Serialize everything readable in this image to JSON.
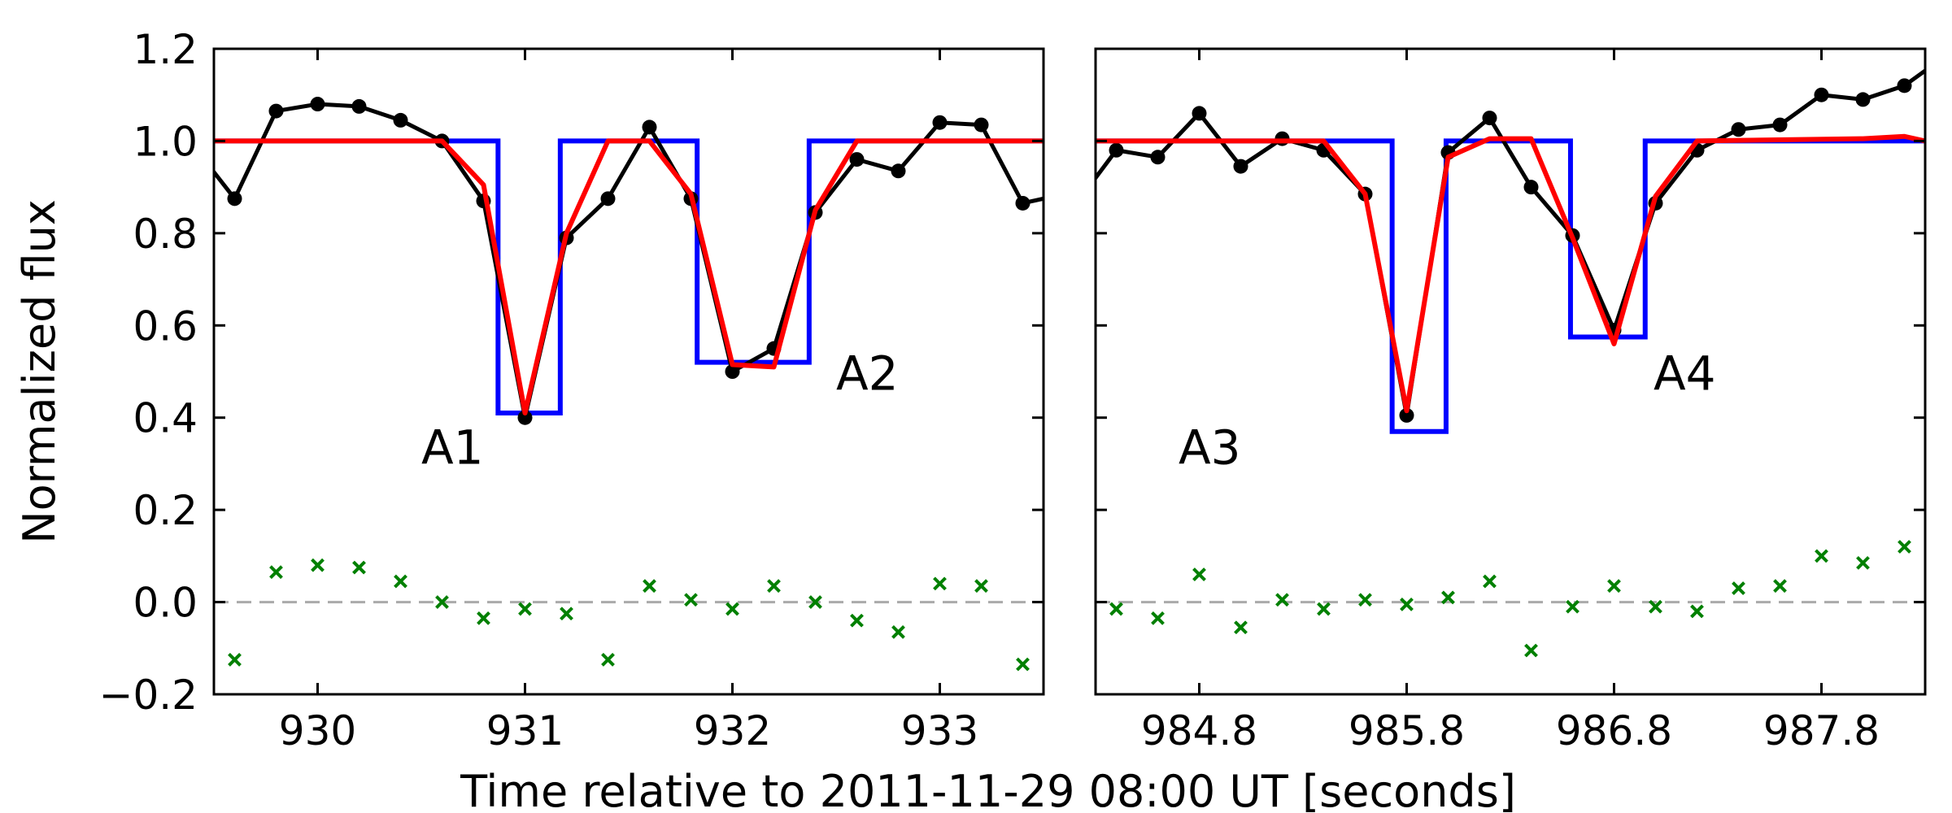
{
  "colors": {
    "data": "#000000",
    "model": "#0000ff",
    "fit": "#ff0000",
    "residual": "#008000",
    "zero_line": "#aaaaaa"
  },
  "chart_data": {
    "type": "line",
    "xlabel": "Time relative to 2011-11-29 08:00 UT [seconds]",
    "ylabel": "Normalized flux",
    "ylim": [
      -0.2,
      1.2
    ],
    "yticks": [
      -0.2,
      0.0,
      0.2,
      0.4,
      0.6,
      0.8,
      1.0,
      1.2
    ],
    "ytick_labels": [
      "−0.2",
      "0.0",
      "0.2",
      "0.4",
      "0.6",
      "0.8",
      "1.0",
      "1.2"
    ],
    "zero_line": {
      "y": 0.0,
      "style": "dashed"
    },
    "panels": [
      {
        "xlim": [
          929.5,
          933.5
        ],
        "xticks": [
          930,
          931,
          932,
          933
        ],
        "xtick_labels": [
          "930",
          "931",
          "932",
          "933"
        ],
        "annotations": [
          {
            "text": "A1",
            "x": 930.5,
            "y": 0.3
          },
          {
            "text": "A2",
            "x": 932.5,
            "y": 0.46
          }
        ],
        "data_x": [
          929.4,
          929.6,
          929.8,
          930.0,
          930.2,
          930.4,
          930.6,
          930.8,
          931.0,
          931.2,
          931.4,
          931.6,
          931.8,
          932.0,
          932.2,
          932.4,
          932.6,
          932.8,
          933.0,
          933.2,
          933.4,
          933.6
        ],
        "data_y": [
          0.99,
          0.875,
          1.065,
          1.08,
          1.075,
          1.045,
          1.0,
          0.87,
          0.4,
          0.79,
          0.875,
          1.03,
          0.875,
          0.5,
          0.55,
          0.845,
          0.96,
          0.935,
          1.04,
          1.035,
          0.865,
          0.885
        ],
        "model_x": [
          929.5,
          930.87,
          930.87,
          931.17,
          931.17,
          931.83,
          931.83,
          932.37,
          932.37,
          933.5
        ],
        "model_y": [
          1.0,
          1.0,
          0.41,
          0.41,
          1.0,
          1.0,
          0.52,
          0.52,
          1.0,
          1.0
        ],
        "fit_x": [
          929.5,
          930.4,
          930.6,
          930.8,
          931.0,
          931.2,
          931.4,
          931.6,
          931.8,
          932.0,
          932.2,
          932.4,
          932.6,
          933.5
        ],
        "fit_y": [
          1.0,
          1.0,
          1.0,
          0.905,
          0.41,
          0.8,
          1.0,
          1.0,
          0.885,
          0.515,
          0.51,
          0.85,
          1.0,
          1.0
        ],
        "residual_x": [
          929.6,
          929.8,
          930.0,
          930.2,
          930.4,
          930.6,
          930.8,
          931.0,
          931.2,
          931.4,
          931.6,
          931.8,
          932.0,
          932.2,
          932.4,
          932.6,
          932.8,
          933.0,
          933.2,
          933.4
        ],
        "residual_y": [
          -0.125,
          0.065,
          0.08,
          0.075,
          0.045,
          0.0,
          -0.035,
          -0.015,
          -0.025,
          -0.125,
          0.035,
          0.005,
          -0.015,
          0.035,
          0.0,
          -0.04,
          -0.065,
          0.04,
          0.035,
          -0.135
        ]
      },
      {
        "xlim": [
          984.3,
          988.3
        ],
        "xticks": [
          984.8,
          985.8,
          986.8,
          987.8
        ],
        "xtick_labels": [
          "984.8",
          "985.8",
          "986.8",
          "987.8"
        ],
        "annotations": [
          {
            "text": "A3",
            "x": 984.7,
            "y": 0.3
          },
          {
            "text": "A4",
            "x": 986.99,
            "y": 0.46
          }
        ],
        "data_x": [
          984.2,
          984.4,
          984.6,
          984.8,
          985.0,
          985.2,
          985.4,
          985.6,
          985.8,
          986.0,
          986.2,
          986.4,
          986.6,
          986.8,
          987.0,
          987.2,
          987.4,
          987.6,
          987.8,
          988.0,
          988.2,
          988.4
        ],
        "data_y": [
          0.86,
          0.98,
          0.965,
          1.06,
          0.945,
          1.005,
          0.98,
          0.885,
          0.405,
          0.975,
          1.05,
          0.9,
          0.795,
          0.59,
          0.865,
          0.98,
          1.025,
          1.035,
          1.1,
          1.09,
          1.12,
          1.185
        ],
        "model_x": [
          984.3,
          985.73,
          985.73,
          985.99,
          985.99,
          986.59,
          986.59,
          986.95,
          986.95,
          988.3
        ],
        "model_y": [
          1.0,
          1.0,
          0.37,
          0.37,
          1.0,
          1.0,
          0.575,
          0.575,
          1.0,
          1.0
        ],
        "fit_x": [
          984.3,
          985.4,
          985.6,
          985.8,
          986.0,
          986.2,
          986.4,
          986.6,
          986.8,
          987.0,
          987.2,
          988.0,
          988.2,
          988.3
        ],
        "fit_y": [
          1.0,
          1.0,
          0.885,
          0.415,
          0.965,
          1.005,
          1.005,
          0.79,
          0.56,
          0.88,
          1.0,
          1.005,
          1.01,
          1.0
        ],
        "residual_x": [
          984.4,
          984.6,
          984.8,
          985.0,
          985.2,
          985.4,
          985.6,
          985.8,
          986.0,
          986.2,
          986.4,
          986.6,
          986.8,
          987.0,
          987.2,
          987.4,
          987.6,
          987.8,
          988.0,
          988.2
        ],
        "residual_y": [
          -0.015,
          -0.035,
          0.06,
          -0.055,
          0.005,
          -0.015,
          0.005,
          -0.005,
          0.01,
          0.045,
          -0.105,
          -0.01,
          0.035,
          -0.01,
          -0.02,
          0.03,
          0.035,
          0.1,
          0.085,
          0.12
        ]
      }
    ]
  }
}
